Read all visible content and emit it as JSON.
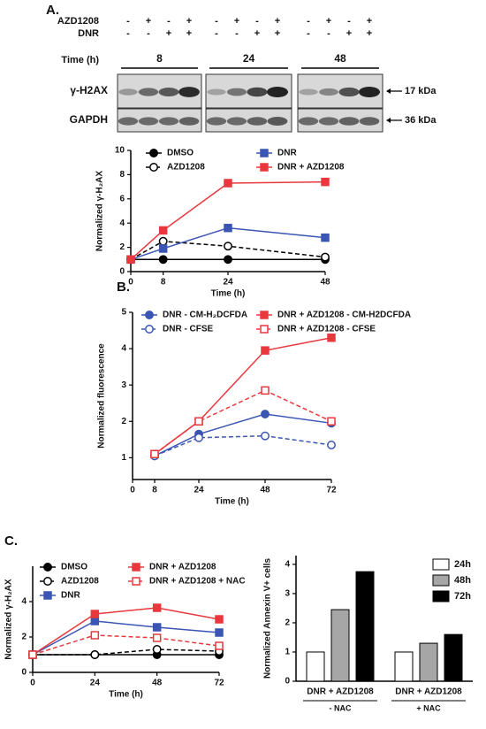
{
  "panels": [
    "A.",
    "B.",
    "C."
  ],
  "blot": {
    "rows": [
      {
        "label": "AZD1208",
        "signs": [
          "-",
          "+",
          "-",
          "+",
          "-",
          "+",
          "-",
          "+",
          "-",
          "+",
          "-",
          "+"
        ]
      },
      {
        "label": "DNR",
        "signs": [
          "-",
          "-",
          "+",
          "+",
          "-",
          "-",
          "+",
          "+",
          "-",
          "-",
          "+",
          "+"
        ]
      }
    ],
    "time_label": "Time (h)",
    "times": [
      "8",
      "24",
      "48"
    ],
    "bands": [
      {
        "label": "γ-H2AX",
        "size": "17 kDa"
      },
      {
        "label": "GAPDH",
        "size": "36 kDa"
      }
    ]
  },
  "chart_data": [
    {
      "type": "line",
      "xlabel": "Time (h)",
      "ylabel": "Normalized γ-H₂AX",
      "x": [
        0,
        8,
        24,
        48
      ],
      "xlim": [
        0,
        48
      ],
      "xticks": [
        0,
        8,
        24,
        48
      ],
      "ylim": [
        0,
        10
      ],
      "yticks": [
        0,
        2,
        4,
        6,
        8,
        10
      ],
      "series": [
        {
          "name": "DMSO",
          "color": "#000000",
          "marker": "circle",
          "filled": true,
          "dashed": false,
          "values": [
            1,
            1,
            1,
            1
          ]
        },
        {
          "name": "AZD1208",
          "color": "#000000",
          "marker": "circle",
          "filled": false,
          "dashed": true,
          "values": [
            1,
            2.5,
            2.1,
            1.2
          ]
        },
        {
          "name": "DNR",
          "color": "#3a55b4",
          "marker": "square",
          "filled": true,
          "dashed": false,
          "values": [
            1,
            1.9,
            3.6,
            2.8
          ]
        },
        {
          "name": "DNR + AZD1208",
          "color": "#e8383d",
          "marker": "square",
          "filled": true,
          "dashed": false,
          "values": [
            1,
            3.4,
            7.3,
            7.4
          ]
        }
      ]
    },
    {
      "type": "line",
      "xlabel": "Time (h)",
      "ylabel": "Normalized fluorescence",
      "x": [
        8,
        24,
        48,
        72
      ],
      "xlim": [
        0,
        72
      ],
      "xticks": [
        0,
        8,
        24,
        48,
        72
      ],
      "ylim": [
        0.4,
        5
      ],
      "yticks": [
        1,
        2,
        3,
        4,
        5
      ],
      "series": [
        {
          "name": "DNR - CM-H₂DCFDA",
          "color": "#3a55b4",
          "marker": "circle",
          "filled": true,
          "dashed": false,
          "values": [
            1.05,
            1.65,
            2.2,
            1.95
          ]
        },
        {
          "name": "DNR - CFSE",
          "color": "#3a55b4",
          "marker": "circle",
          "filled": false,
          "dashed": true,
          "values": [
            1.05,
            1.55,
            1.6,
            1.35
          ]
        },
        {
          "name": "DNR + AZD1208 - CM-H2DCFDA",
          "color": "#e8383d",
          "marker": "square",
          "filled": true,
          "dashed": false,
          "values": [
            1.1,
            2.0,
            3.95,
            4.3
          ]
        },
        {
          "name": "DNR + AZD1208 - CFSE",
          "color": "#e8383d",
          "marker": "square",
          "filled": false,
          "dashed": true,
          "values": [
            1.1,
            2.0,
            2.85,
            2.0
          ]
        }
      ]
    },
    {
      "type": "line",
      "xlabel": "Time (h)",
      "ylabel": "Normalized γ-H₂AX",
      "x": [
        0,
        24,
        48,
        72
      ],
      "xlim": [
        0,
        72
      ],
      "xticks": [
        0,
        24,
        48,
        72
      ],
      "ylim": [
        0,
        6
      ],
      "yticks": [
        0,
        2,
        4
      ],
      "series": [
        {
          "name": "DMSO",
          "color": "#000000",
          "marker": "circle",
          "filled": true,
          "dashed": false,
          "values": [
            1,
            1,
            1,
            1
          ]
        },
        {
          "name": "AZD1208",
          "color": "#000000",
          "marker": "circle",
          "filled": false,
          "dashed": true,
          "values": [
            1,
            1,
            1.3,
            1.2
          ]
        },
        {
          "name": "DNR",
          "color": "#3a55b4",
          "marker": "square",
          "filled": true,
          "dashed": false,
          "values": [
            1,
            2.9,
            2.55,
            2.25
          ]
        },
        {
          "name": "DNR + AZD1208",
          "color": "#e8383d",
          "marker": "square",
          "filled": true,
          "dashed": false,
          "values": [
            1,
            3.3,
            3.65,
            3.0
          ]
        },
        {
          "name": "DNR + AZD1208 + NAC",
          "color": "#e8383d",
          "marker": "square",
          "filled": false,
          "dashed": true,
          "values": [
            1,
            2.1,
            1.95,
            1.5
          ]
        }
      ]
    },
    {
      "type": "bar",
      "ylabel": "Normalized Annexin V+ cells",
      "categories": [
        "DNR + AZD1208",
        "DNR + AZD1208"
      ],
      "groups": [
        "- NAC",
        "+ NAC"
      ],
      "ylim": [
        0,
        4.3
      ],
      "yticks": [
        0,
        1,
        2,
        3,
        4
      ],
      "series": [
        {
          "name": "24h",
          "color": "#ffffff",
          "values": [
            1,
            1
          ]
        },
        {
          "name": "48h",
          "color": "#a6a6a6",
          "values": [
            2.45,
            1.3
          ]
        },
        {
          "name": "72h",
          "color": "#000000",
          "values": [
            3.75,
            1.6
          ]
        }
      ]
    }
  ]
}
